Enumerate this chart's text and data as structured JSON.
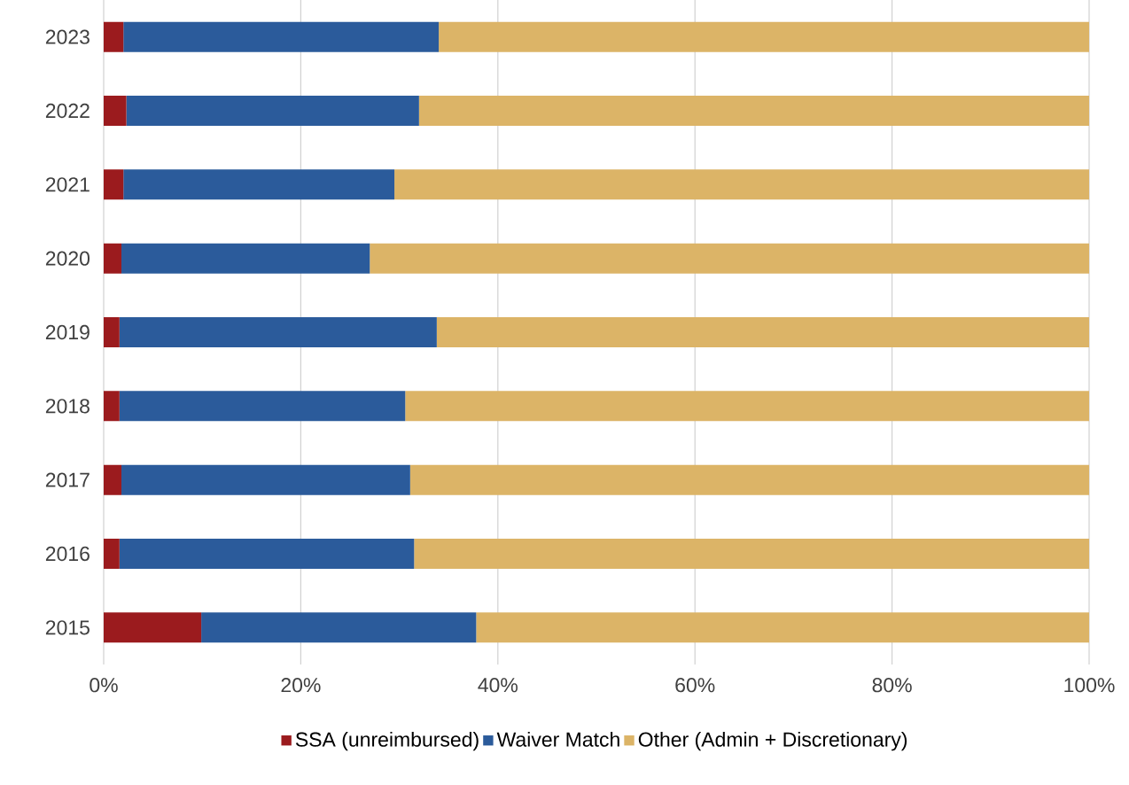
{
  "chart_data": {
    "type": "bar",
    "orientation": "horizontal",
    "stacked": true,
    "categories": [
      "2023",
      "2022",
      "2021",
      "2020",
      "2019",
      "2018",
      "2017",
      "2016",
      "2015"
    ],
    "series": [
      {
        "name": "SSA (unreimbursed)",
        "color": "#9b1b1e",
        "values": [
          2.0,
          2.3,
          2.0,
          1.8,
          1.6,
          1.6,
          1.8,
          1.6,
          9.9
        ]
      },
      {
        "name": "Waiver Match",
        "color": "#2b5b9b",
        "values": [
          32.0,
          29.7,
          27.5,
          25.2,
          32.2,
          29.0,
          29.3,
          29.9,
          27.9
        ]
      },
      {
        "name": "Other (Admin + Discretionary)",
        "color": "#dcb467",
        "values": [
          66.0,
          68.0,
          70.5,
          73.0,
          66.2,
          69.4,
          68.9,
          68.5,
          62.2
        ]
      }
    ],
    "xlim": [
      0,
      100
    ],
    "xticks": [
      {
        "value": 0,
        "label": "0%"
      },
      {
        "value": 20,
        "label": "20%"
      },
      {
        "value": 40,
        "label": "40%"
      },
      {
        "value": 60,
        "label": "60%"
      },
      {
        "value": 80,
        "label": "80%"
      },
      {
        "value": 100,
        "label": "100%"
      }
    ],
    "grid": "x",
    "legend": "bottom"
  }
}
